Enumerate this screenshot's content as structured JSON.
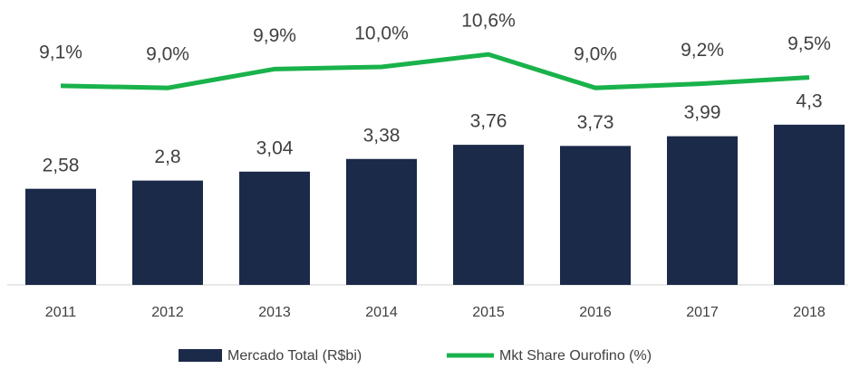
{
  "chart_data": {
    "type": "combo",
    "categories": [
      "2011",
      "2012",
      "2013",
      "2014",
      "2015",
      "2016",
      "2017",
      "2018"
    ],
    "series": [
      {
        "name": "Mercado Total (R$bi)",
        "type": "bar",
        "color": "#1b2a49",
        "axis": "y",
        "values": [
          2.58,
          2.8,
          3.04,
          3.38,
          3.76,
          3.73,
          3.99,
          4.3
        ],
        "value_labels": [
          "2,58",
          "2,8",
          "3,04",
          "3,38",
          "3,76",
          "3,73",
          "3,99",
          "4,3"
        ]
      },
      {
        "name": "Mkt Share Ourofino (%)",
        "type": "line",
        "color": "#19b24b",
        "axis": "y2",
        "values": [
          9.1,
          9.0,
          9.9,
          10.0,
          10.6,
          9.0,
          9.2,
          9.5
        ],
        "value_labels": [
          "9,1%",
          "9,0%",
          "9,9%",
          "10,0%",
          "10,6%",
          "9,0%",
          "9,2%",
          "9,5%"
        ]
      }
    ],
    "ylim": [
      0,
      7.2
    ],
    "y2lim": [
      -0.4,
      12.4
    ],
    "legend": "bottom"
  }
}
